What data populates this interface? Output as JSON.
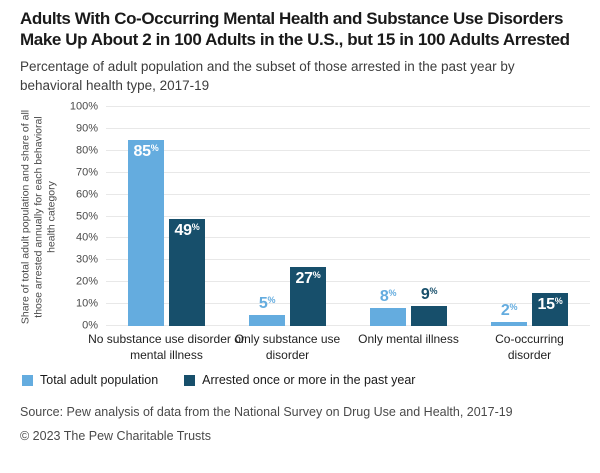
{
  "chart_data": {
    "type": "bar",
    "title": "Adults With Co-Occurring Mental Health and Substance Use Disorders Make Up About 2 in 100 Adults in the U.S., but 15 in 100 Adults Arrested",
    "subtitle": "Percentage of adult population and the subset of those arrested in the past year by behavioral health type, 2017-19",
    "categories": [
      "No substance use disorder or mental illness",
      "Only substance use disorder",
      "Only mental illness",
      "Co-occurring disorder"
    ],
    "series": [
      {
        "name": "Total adult population",
        "color": "#64ACDF",
        "values": [
          85,
          5,
          8,
          2
        ]
      },
      {
        "name": "Arrested once or more in the past year",
        "color": "#174F6B",
        "values": [
          49,
          27,
          9,
          15
        ]
      }
    ],
    "unit": "%",
    "ylabel": "Share of total adult population and share of all those arrested annually for each behavioral health category",
    "ylim": [
      0,
      100
    ],
    "y_tick_step": 10,
    "grid": "horizontal",
    "legend_position": "bottom",
    "value_label_inside_threshold": 15,
    "value_label_inside_color": "#ffffff"
  },
  "footer": {
    "source": "Source: Pew analysis of data from the National Survey on Drug Use and Health, 2017-19",
    "copyright": "© 2023 The Pew Charitable Trusts"
  }
}
